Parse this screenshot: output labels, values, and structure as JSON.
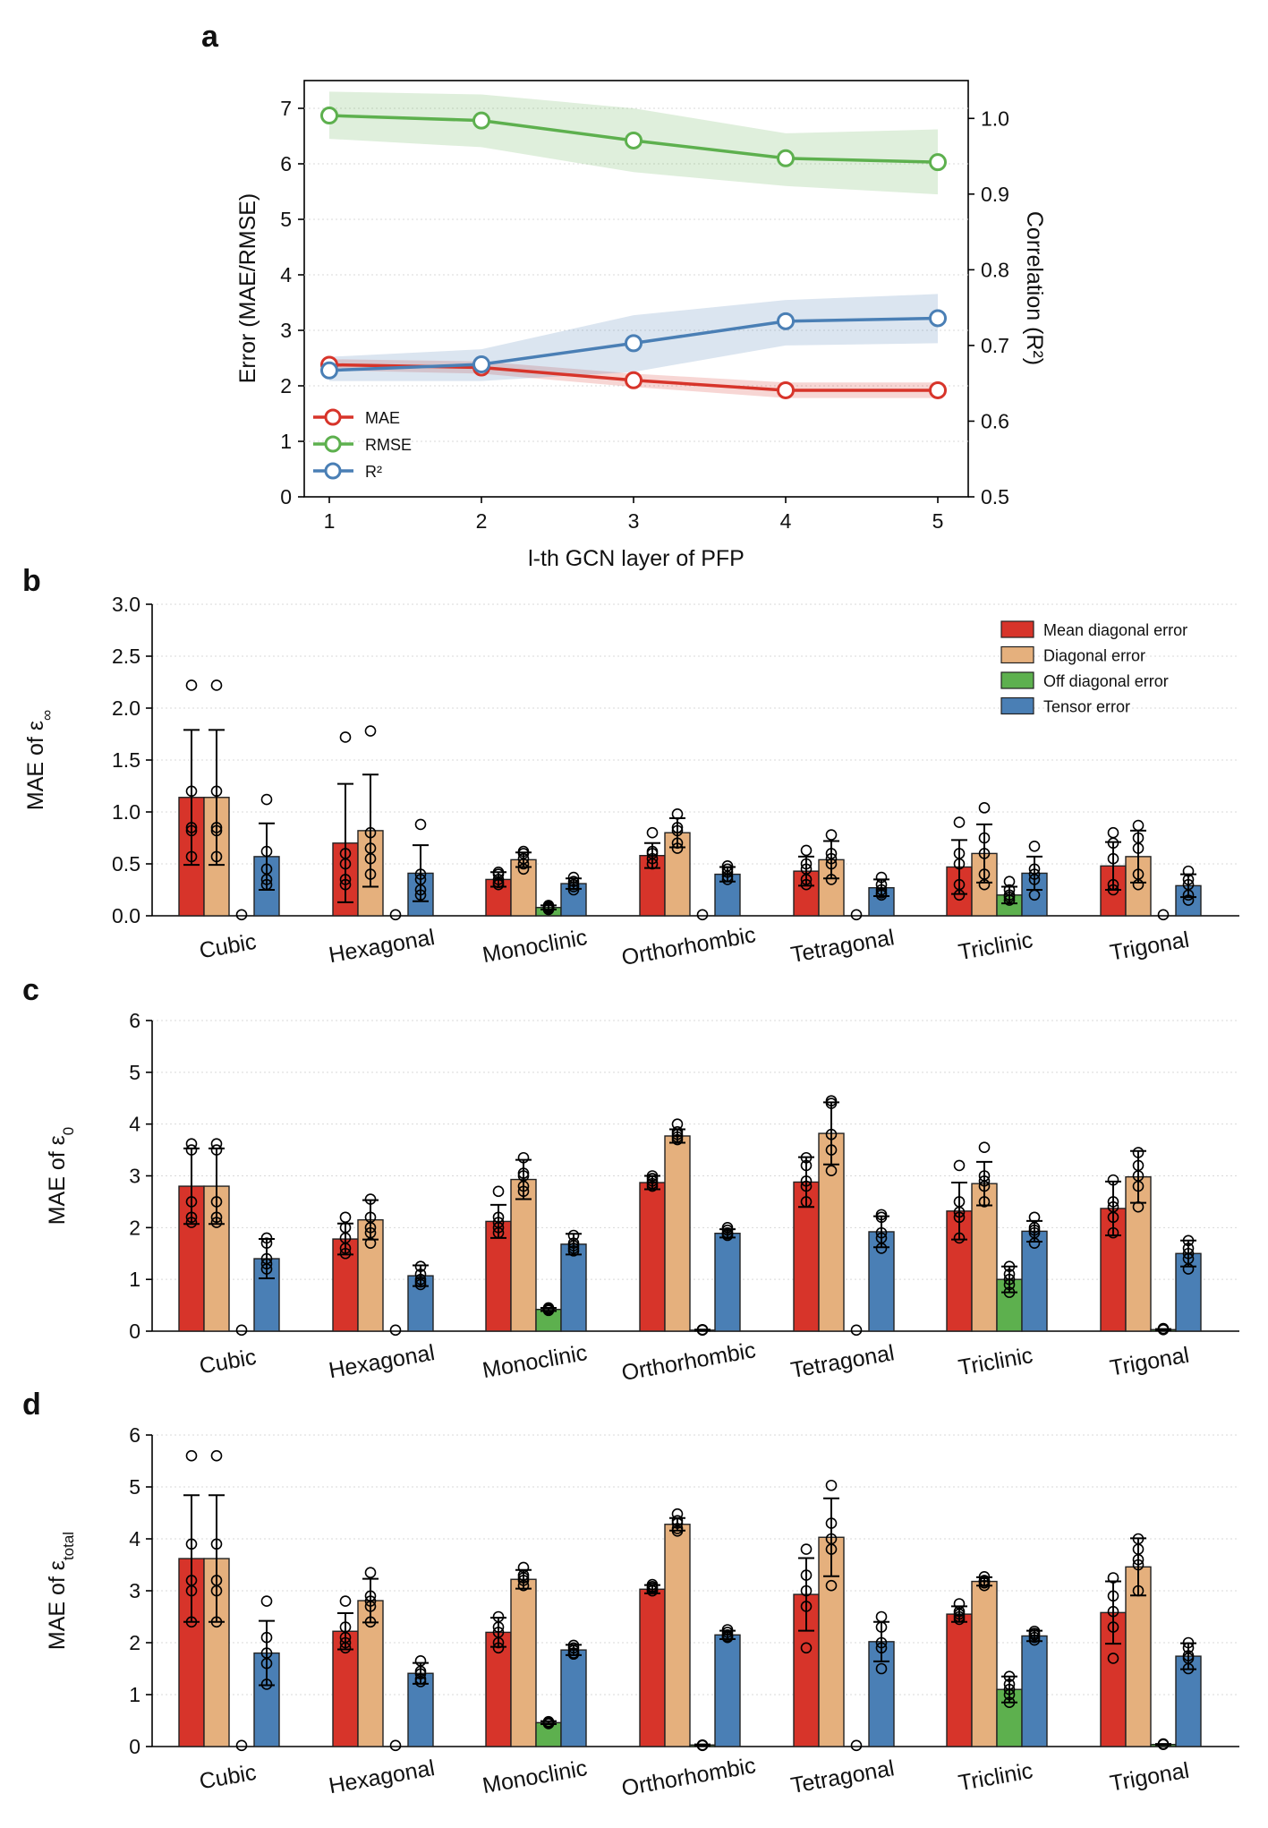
{
  "chart_data": [
    {
      "panel": "a",
      "type": "line",
      "x": [
        1,
        2,
        3,
        4,
        5
      ],
      "xlabel": "l-th GCN layer of PFP",
      "ylabel_left": "Error (MAE/RMSE)",
      "ylabel_right": "Correlation (R²)",
      "ylim_left": [
        0,
        7.5
      ],
      "ylim_right": [
        0.5,
        1.05
      ],
      "left_ticks": [
        "0",
        "1",
        "2",
        "3",
        "4",
        "5",
        "6",
        "7"
      ],
      "right_ticks": [
        "0.5",
        "0.6",
        "0.7",
        "0.8",
        "0.9",
        "1.0"
      ],
      "x_ticks": [
        "1",
        "2",
        "3",
        "4",
        "5"
      ],
      "series": [
        {
          "name": "MAE",
          "axis": "left",
          "color": "#d7342a",
          "values": [
            2.38,
            2.33,
            2.1,
            1.92,
            1.92
          ],
          "lower": [
            2.28,
            2.22,
            1.98,
            1.78,
            1.78
          ],
          "upper": [
            2.48,
            2.44,
            2.22,
            2.06,
            2.06
          ]
        },
        {
          "name": "RMSE",
          "axis": "left",
          "color": "#5db04e",
          "values": [
            6.87,
            6.78,
            6.42,
            6.1,
            6.03
          ],
          "lower": [
            6.45,
            6.3,
            5.85,
            5.6,
            5.45
          ],
          "upper": [
            7.3,
            7.25,
            7.0,
            6.55,
            6.62
          ]
        },
        {
          "name": "R²",
          "axis": "right",
          "color": "#4a7fb5",
          "values": [
            0.667,
            0.675,
            0.703,
            0.732,
            0.736
          ],
          "lower": [
            0.653,
            0.653,
            0.665,
            0.7,
            0.703
          ],
          "upper": [
            0.685,
            0.695,
            0.74,
            0.76,
            0.768
          ]
        }
      ],
      "legend": [
        "MAE",
        "RMSE",
        "R²"
      ]
    },
    {
      "panel": "b",
      "type": "bar",
      "ylabel_text": "MAE of ε",
      "ylabel_sub": "∞",
      "ylim": [
        0,
        3.0
      ],
      "y_ticks": [
        "0.0",
        "0.5",
        "1.0",
        "1.5",
        "2.0",
        "2.5",
        "3.0"
      ],
      "categories": [
        "Cubic",
        "Hexagonal",
        "Monoclinic",
        "Orthorhombic",
        "Tetragonal",
        "Triclinic",
        "Trigonal"
      ],
      "legend": [
        "Mean diagonal error",
        "Diagonal error",
        "Off diagonal error",
        "Tensor error"
      ],
      "series": [
        {
          "name": "Mean diagonal error",
          "color": "#d7342a",
          "values": [
            1.14,
            0.7,
            0.35,
            0.58,
            0.43,
            0.47,
            0.48
          ],
          "err": [
            0.65,
            0.57,
            0.07,
            0.12,
            0.14,
            0.26,
            0.23
          ],
          "points": [
            [
              2.22,
              1.2,
              0.85,
              0.82,
              0.57
            ],
            [
              1.72,
              0.6,
              0.5,
              0.3,
              0.35
            ],
            [
              0.42,
              0.35,
              0.3,
              0.32,
              0.4
            ],
            [
              0.8,
              0.62,
              0.5,
              0.55,
              0.6
            ],
            [
              0.63,
              0.45,
              0.3,
              0.35,
              0.5
            ],
            [
              0.9,
              0.6,
              0.5,
              0.3,
              0.2
            ],
            [
              0.8,
              0.55,
              0.3,
              0.25,
              0.7
            ]
          ]
        },
        {
          "name": "Diagonal error",
          "color": "#e5b07d",
          "values": [
            1.14,
            0.82,
            0.54,
            0.8,
            0.54,
            0.6,
            0.57
          ],
          "err": [
            0.65,
            0.54,
            0.07,
            0.14,
            0.18,
            0.28,
            0.25
          ],
          "points": [
            [
              2.22,
              1.2,
              0.85,
              0.82,
              0.57
            ],
            [
              1.78,
              0.65,
              0.55,
              0.4,
              0.8
            ],
            [
              0.62,
              0.55,
              0.5,
              0.6,
              0.45
            ],
            [
              0.98,
              0.82,
              0.65,
              0.7,
              0.85
            ],
            [
              0.78,
              0.6,
              0.35,
              0.5,
              0.55
            ],
            [
              1.04,
              0.75,
              0.6,
              0.4,
              0.3
            ],
            [
              0.87,
              0.65,
              0.4,
              0.3,
              0.75
            ]
          ]
        },
        {
          "name": "Off diagonal error",
          "color": "#5db04e",
          "values": [
            0.0,
            0.0,
            0.08,
            0.0,
            0.0,
            0.2,
            0.0
          ],
          "err": [
            0,
            0,
            0.02,
            0,
            0,
            0.08,
            0
          ],
          "points": [
            [
              0.01
            ],
            [
              0.01
            ],
            [
              0.07,
              0.09,
              0.06,
              0.1,
              0.08
            ],
            [
              0.01
            ],
            [
              0.01
            ],
            [
              0.33,
              0.2,
              0.15,
              0.25,
              0.18
            ],
            [
              0.01
            ]
          ]
        },
        {
          "name": "Tensor error",
          "color": "#4a7fb5",
          "values": [
            0.57,
            0.41,
            0.31,
            0.4,
            0.27,
            0.41,
            0.29
          ],
          "err": [
            0.32,
            0.27,
            0.05,
            0.07,
            0.08,
            0.16,
            0.11
          ],
          "points": [
            [
              1.12,
              0.62,
              0.45,
              0.3,
              0.35
            ],
            [
              0.88,
              0.35,
              0.2,
              0.25,
              0.4
            ],
            [
              0.37,
              0.3,
              0.28,
              0.33,
              0.25
            ],
            [
              0.48,
              0.38,
              0.35,
              0.42,
              0.45
            ],
            [
              0.37,
              0.25,
              0.2,
              0.3,
              0.22
            ],
            [
              0.67,
              0.4,
              0.35,
              0.2,
              0.45
            ],
            [
              0.43,
              0.3,
              0.2,
              0.15,
              0.35
            ]
          ]
        }
      ]
    },
    {
      "panel": "c",
      "type": "bar",
      "ylabel_text": "MAE of ε",
      "ylabel_sub": "0",
      "ylim": [
        0,
        6
      ],
      "y_ticks": [
        "0",
        "1",
        "2",
        "3",
        "4",
        "5",
        "6"
      ],
      "categories": [
        "Cubic",
        "Hexagonal",
        "Monoclinic",
        "Orthorhombic",
        "Tetragonal",
        "Triclinic",
        "Trigonal"
      ],
      "legend": [],
      "series": [
        {
          "name": "Mean diagonal error",
          "color": "#d7342a",
          "values": [
            2.8,
            1.78,
            2.12,
            2.87,
            2.88,
            2.32,
            2.37
          ],
          "err": [
            0.73,
            0.3,
            0.32,
            0.13,
            0.48,
            0.55,
            0.52
          ],
          "points": [
            [
              3.62,
              3.5,
              2.5,
              2.1,
              2.2
            ],
            [
              2.2,
              1.8,
              1.5,
              1.6,
              2.0
            ],
            [
              2.7,
              2.1,
              1.9,
              2.0,
              2.2
            ],
            [
              3.0,
              2.9,
              2.8,
              2.85,
              2.95
            ],
            [
              3.35,
              3.2,
              2.9,
              2.5,
              2.8
            ],
            [
              3.2,
              2.5,
              2.2,
              1.8,
              2.3
            ],
            [
              2.92,
              2.4,
              2.2,
              1.9,
              2.5
            ]
          ]
        },
        {
          "name": "Diagonal error",
          "color": "#e5b07d",
          "values": [
            2.8,
            2.15,
            2.93,
            3.77,
            3.82,
            2.85,
            2.98
          ],
          "err": [
            0.73,
            0.38,
            0.38,
            0.13,
            0.6,
            0.42,
            0.5
          ],
          "points": [
            [
              3.62,
              3.5,
              2.5,
              2.1,
              2.2
            ],
            [
              2.55,
              2.2,
              1.9,
              1.7,
              2.0
            ],
            [
              3.35,
              3.05,
              2.8,
              2.7,
              3.0
            ],
            [
              4.0,
              3.8,
              3.75,
              3.85,
              3.7
            ],
            [
              4.45,
              4.4,
              3.8,
              3.1,
              3.5
            ],
            [
              3.55,
              3.0,
              2.8,
              2.5,
              2.9
            ],
            [
              3.45,
              3.2,
              2.8,
              2.4,
              3.0
            ]
          ]
        },
        {
          "name": "Off diagonal error",
          "color": "#5db04e",
          "values": [
            0.0,
            0.0,
            0.42,
            0.02,
            0.0,
            1.0,
            0.03
          ],
          "err": [
            0,
            0,
            0.03,
            0.01,
            0,
            0.25,
            0.01
          ],
          "points": [
            [
              0.02
            ],
            [
              0.02
            ],
            [
              0.42,
              0.45,
              0.4,
              0.44,
              0.41
            ],
            [
              0.03,
              0.02
            ],
            [
              0.02
            ],
            [
              1.25,
              1.1,
              0.9,
              0.75,
              1.0
            ],
            [
              0.05,
              0.03
            ]
          ]
        },
        {
          "name": "Tensor error",
          "color": "#4a7fb5",
          "values": [
            1.4,
            1.07,
            1.68,
            1.89,
            1.92,
            1.93,
            1.5
          ],
          "err": [
            0.38,
            0.2,
            0.2,
            0.08,
            0.3,
            0.2,
            0.25
          ],
          "points": [
            [
              1.8,
              1.7,
              1.3,
              1.2,
              1.4
            ],
            [
              1.25,
              1.1,
              0.9,
              0.95,
              1.0
            ],
            [
              1.85,
              1.7,
              1.6,
              1.55,
              1.65
            ],
            [
              2.0,
              1.9,
              1.85,
              1.88,
              1.95
            ],
            [
              2.25,
              2.2,
              1.8,
              1.6,
              1.9
            ],
            [
              2.2,
              2.0,
              1.9,
              1.7,
              1.95
            ],
            [
              1.75,
              1.6,
              1.4,
              1.2,
              1.5
            ]
          ]
        }
      ]
    },
    {
      "panel": "d",
      "type": "bar",
      "ylabel_text": "MAE of ε",
      "ylabel_sub": "total",
      "ylim": [
        0,
        6
      ],
      "y_ticks": [
        "0",
        "1",
        "2",
        "3",
        "4",
        "5",
        "6"
      ],
      "categories": [
        "Cubic",
        "Hexagonal",
        "Monoclinic",
        "Orthorhombic",
        "Tetragonal",
        "Triclinic",
        "Trigonal"
      ],
      "legend": [],
      "series": [
        {
          "name": "Mean diagonal error",
          "color": "#d7342a",
          "values": [
            3.62,
            2.22,
            2.2,
            3.03,
            2.93,
            2.55,
            2.58
          ],
          "err": [
            1.22,
            0.35,
            0.28,
            0.08,
            0.7,
            0.15,
            0.6
          ],
          "points": [
            [
              5.6,
              3.9,
              3.2,
              2.4,
              3.0
            ],
            [
              2.8,
              2.3,
              2.0,
              1.9,
              2.1
            ],
            [
              2.5,
              2.2,
              2.0,
              1.9,
              2.3
            ],
            [
              3.12,
              3.05,
              3.0,
              3.0,
              3.08
            ],
            [
              3.8,
              3.3,
              2.7,
              1.9,
              3.0
            ],
            [
              2.75,
              2.6,
              2.5,
              2.45,
              2.55
            ],
            [
              3.25,
              2.6,
              2.3,
              1.7,
              2.9
            ]
          ]
        },
        {
          "name": "Diagonal error",
          "color": "#e5b07d",
          "values": [
            3.62,
            2.81,
            3.22,
            4.28,
            4.03,
            3.18,
            3.46
          ],
          "err": [
            1.22,
            0.42,
            0.18,
            0.12,
            0.75,
            0.08,
            0.55
          ],
          "points": [
            [
              5.6,
              3.9,
              3.2,
              2.4,
              3.0
            ],
            [
              3.35,
              2.9,
              2.7,
              2.4,
              2.8
            ],
            [
              3.45,
              3.3,
              3.2,
              3.1,
              3.25
            ],
            [
              4.48,
              4.3,
              4.2,
              4.35,
              4.15
            ],
            [
              5.03,
              4.3,
              3.8,
              3.1,
              4.0
            ],
            [
              3.27,
              3.2,
              3.15,
              3.1,
              3.18
            ],
            [
              4.0,
              3.8,
              3.5,
              3.0,
              3.6
            ]
          ]
        },
        {
          "name": "Off diagonal error",
          "color": "#5db04e",
          "values": [
            0.0,
            0.0,
            0.46,
            0.03,
            0.0,
            1.1,
            0.04
          ],
          "err": [
            0,
            0,
            0.03,
            0.01,
            0,
            0.25,
            0.01
          ],
          "points": [
            [
              0.02
            ],
            [
              0.02
            ],
            [
              0.46,
              0.48,
              0.44,
              0.47,
              0.45
            ],
            [
              0.03,
              0.02
            ],
            [
              0.02
            ],
            [
              1.35,
              1.2,
              1.0,
              0.85,
              1.1
            ],
            [
              0.05,
              0.04
            ]
          ]
        },
        {
          "name": "Tensor error",
          "color": "#4a7fb5",
          "values": [
            1.8,
            1.41,
            1.86,
            2.15,
            2.02,
            2.13,
            1.74
          ],
          "err": [
            0.62,
            0.2,
            0.1,
            0.08,
            0.38,
            0.1,
            0.25
          ],
          "points": [
            [
              2.8,
              2.1,
              1.6,
              1.2,
              1.8
            ],
            [
              1.65,
              1.45,
              1.3,
              1.25,
              1.4
            ],
            [
              1.95,
              1.85,
              1.8,
              1.78,
              1.9
            ],
            [
              2.25,
              2.15,
              2.1,
              2.12,
              2.2
            ],
            [
              2.5,
              2.3,
              1.9,
              1.5,
              2.0
            ],
            [
              2.22,
              2.15,
              2.1,
              2.05,
              2.18
            ],
            [
              2.0,
              1.9,
              1.7,
              1.5,
              1.75
            ]
          ]
        }
      ]
    }
  ]
}
